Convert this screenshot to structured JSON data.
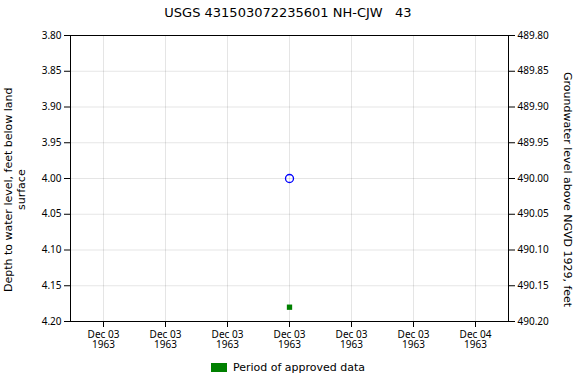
{
  "chart_data": {
    "type": "scatter",
    "title": "USGS 431503072235601 NH-CJW   43",
    "ylabel": "Depth to water level, feet below land\n surface",
    "y2label": "Groundwater level above NGVD 1929, feet",
    "categories": [
      "Dec 03\n1963",
      "Dec 03\n1963",
      "Dec 03\n1963",
      "Dec 03\n1963",
      "Dec 03\n1963",
      "Dec 03\n1963",
      "Dec 04\n1963"
    ],
    "series": [
      {
        "color": "#0000ff",
        "marker": "open_circle",
        "values": [
          null,
          null,
          null,
          4.0,
          null,
          null,
          null
        ]
      },
      {
        "color": "#008000",
        "marker": "square",
        "values": [
          null,
          null,
          null,
          4.18,
          null,
          null,
          null
        ]
      }
    ],
    "ylim": [
      4.2,
      3.8
    ],
    "yticks": [
      {
        "value": 3.8,
        "label": "3.80"
      },
      3.85,
      {
        "value": 3.9,
        "label": "3.90"
      },
      3.95,
      {
        "value": 4.0,
        "label": "4.00"
      },
      4.05,
      {
        "value": 4.1,
        "label": "4.10"
      },
      4.15,
      {
        "value": 4.2,
        "label": "4.20"
      }
    ],
    "y2lim": [
      490.2,
      489.8
    ],
    "y2ticks": [
      {
        "value": 489.8,
        "label": "489.80"
      },
      489.85,
      {
        "value": 489.9,
        "label": "489.90"
      },
      489.95,
      {
        "value": 490.0,
        "label": "490.00"
      },
      490.05,
      {
        "value": 490.1,
        "label": "490.10"
      },
      490.15,
      {
        "value": 490.2,
        "label": "490.20"
      }
    ],
    "grid": true,
    "legend": "bottom",
    "legend_items": [
      {
        "name": "Period of approved data",
        "color": "#008000"
      }
    ]
  }
}
